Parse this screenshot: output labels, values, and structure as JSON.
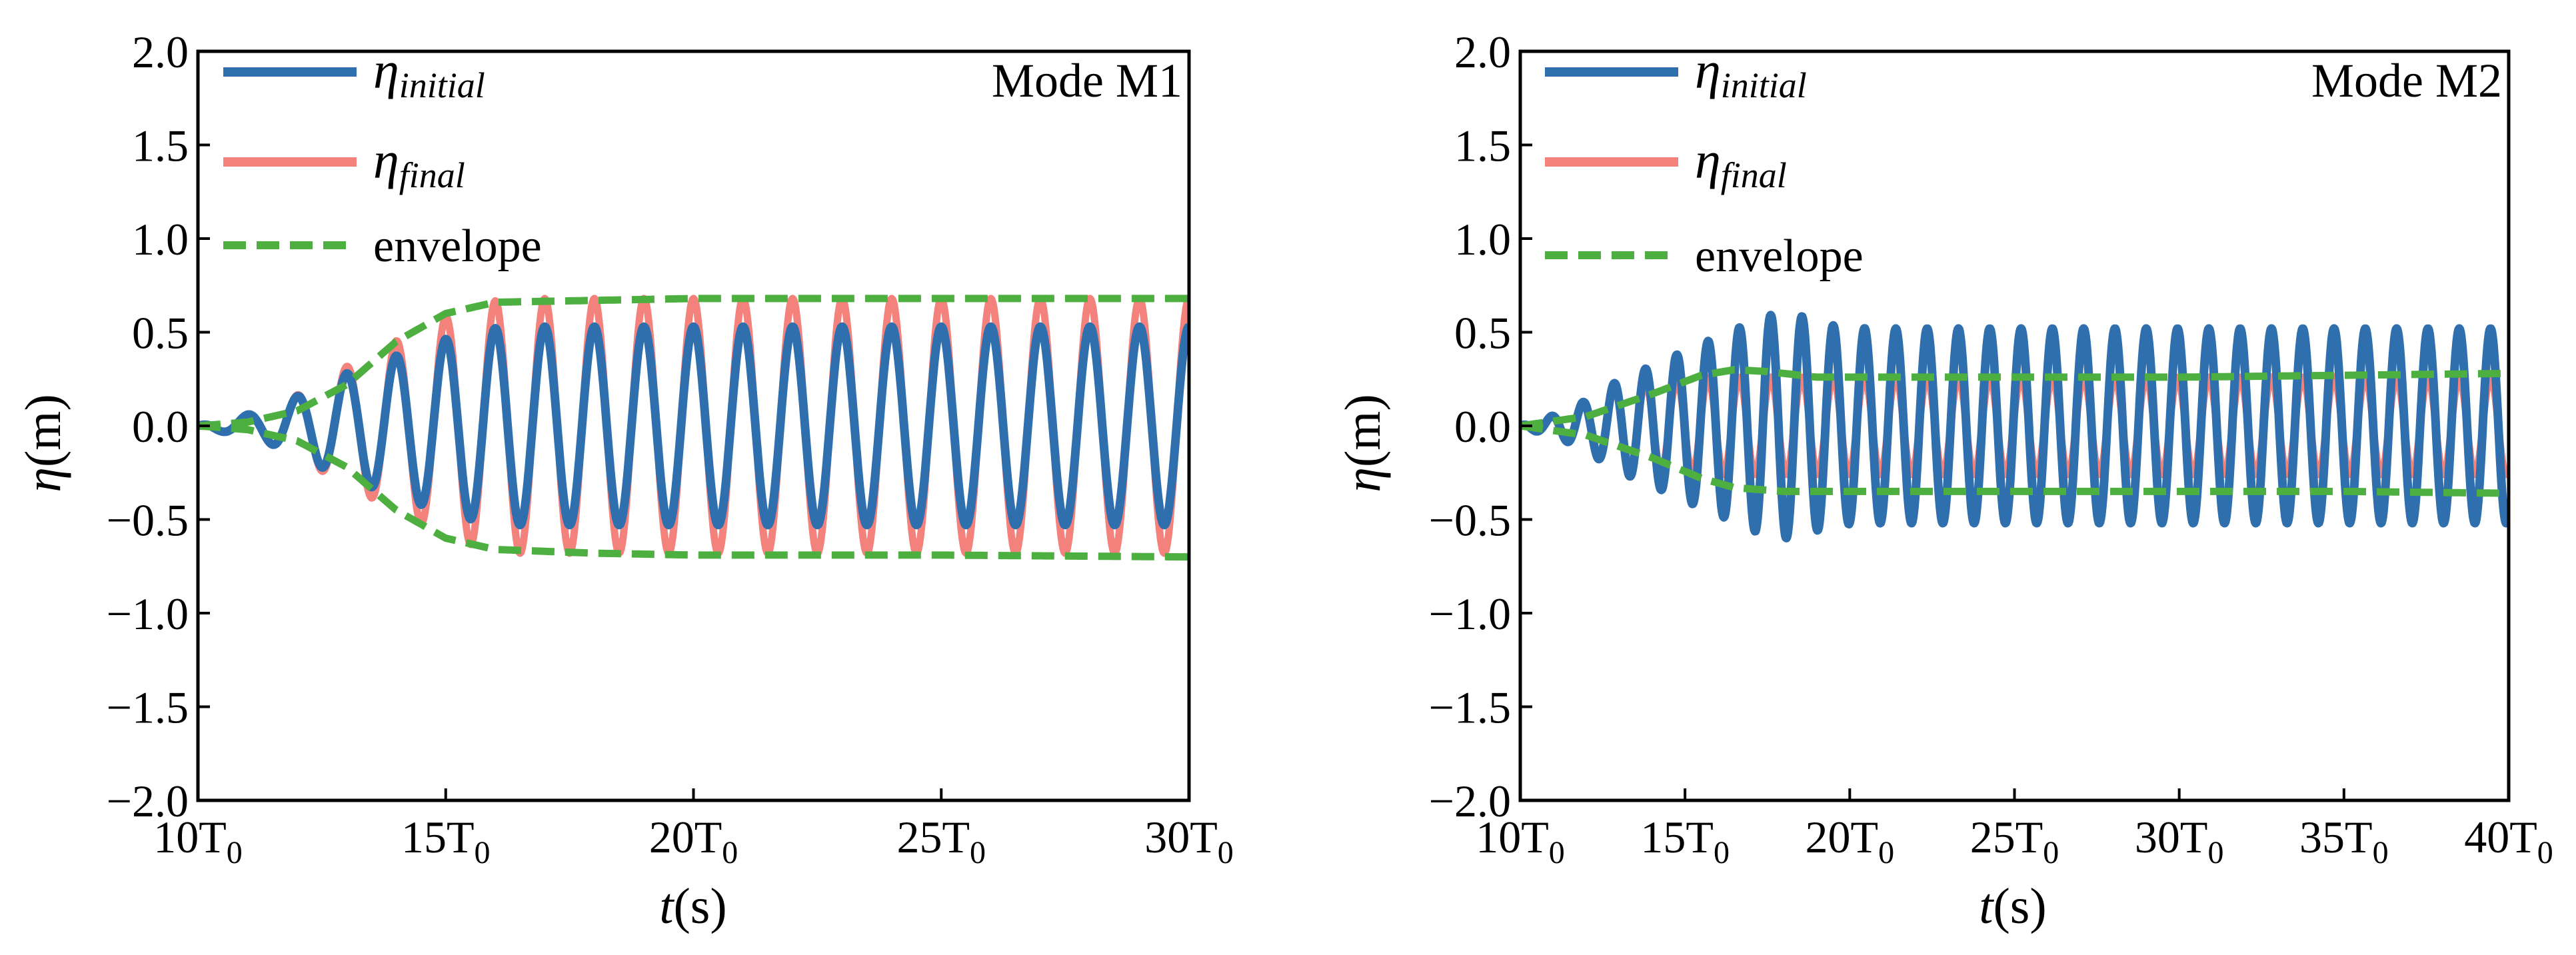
{
  "figure": {
    "ylabel_symbol": "η",
    "ylabel_unit": "(m)",
    "xlabel_symbol": "t",
    "xlabel_unit": "(s)",
    "legend": {
      "eta_symbol": "η",
      "initial_sub": "initial",
      "final_sub": "final",
      "envelope": "envelope"
    }
  },
  "colors": {
    "initial": "#2f6fad",
    "final": "#f4827c",
    "envelope": "#4daf3f"
  },
  "chart_data": [
    {
      "type": "line",
      "annotation": "Mode M1",
      "x_unit_label": "T0",
      "xlim": [
        10,
        30
      ],
      "xticks": [
        10,
        15,
        20,
        25,
        30
      ],
      "xtick_labels": [
        "10T",
        "15T",
        "20T",
        "25T",
        "30T"
      ],
      "xtick_sub": "0",
      "ylim": [
        -2.0,
        2.0
      ],
      "yticks": [
        2.0,
        1.5,
        1.0,
        0.5,
        0.0,
        -0.5,
        -1.0,
        -1.5,
        -2.0
      ],
      "ytick_labels": [
        "2.0",
        "1.5",
        "1.0",
        "0.5",
        "0.0",
        "−0.5",
        "−1.0",
        "−1.5",
        "−2.0"
      ],
      "legend_position": "top-left",
      "series": [
        {
          "key": "initial",
          "period_T0": 1,
          "amplitude_steady": 0.53,
          "onset_T0": 11.3,
          "growth_end_T0": 16.5
        },
        {
          "key": "final",
          "period_T0": 1,
          "amplitude_steady": 0.68,
          "onset_T0": 11.3,
          "growth_end_T0": 16.5
        },
        {
          "key": "envelope_upper",
          "points": [
            [
              10,
              0
            ],
            [
              11,
              0.02
            ],
            [
              12,
              0.08
            ],
            [
              13,
              0.22
            ],
            [
              14,
              0.45
            ],
            [
              15,
              0.6
            ],
            [
              16,
              0.66
            ],
            [
              18,
              0.67
            ],
            [
              20,
              0.68
            ],
            [
              25,
              0.68
            ],
            [
              30,
              0.68
            ]
          ]
        },
        {
          "key": "envelope_lower",
          "points": [
            [
              10,
              0
            ],
            [
              11,
              -0.02
            ],
            [
              12,
              -0.08
            ],
            [
              13,
              -0.22
            ],
            [
              14,
              -0.45
            ],
            [
              15,
              -0.6
            ],
            [
              16,
              -0.66
            ],
            [
              18,
              -0.68
            ],
            [
              20,
              -0.69
            ],
            [
              25,
              -0.69
            ],
            [
              30,
              -0.7
            ]
          ]
        }
      ]
    },
    {
      "type": "line",
      "annotation": "Mode M2",
      "x_unit_label": "T0",
      "xlim": [
        10,
        40
      ],
      "xticks": [
        10,
        15,
        20,
        25,
        30,
        35,
        40
      ],
      "xtick_labels": [
        "10T",
        "15T",
        "20T",
        "25T",
        "30T",
        "35T",
        "40T"
      ],
      "xtick_sub": "0",
      "ylim": [
        -2.0,
        2.0
      ],
      "yticks": [
        2.0,
        1.5,
        1.0,
        0.5,
        0.0,
        -0.5,
        -1.0,
        -1.5,
        -2.0
      ],
      "ytick_labels": [
        "2.0",
        "1.5",
        "1.0",
        "0.5",
        "0.0",
        "−0.5",
        "−1.0",
        "−1.5",
        "−2.0"
      ],
      "legend_position": "top-left",
      "series": [
        {
          "key": "initial",
          "period_T0": 0.95,
          "amplitude_steady": 0.52,
          "overshoot_peak": 0.6,
          "onset_T0": 11.5,
          "growth_end_T0": 17.5
        },
        {
          "key": "final",
          "period_T0": 0.95,
          "amplitude_steady": 0.26,
          "onset_T0": 11.5,
          "growth_end_T0": 16.5
        },
        {
          "key": "envelope_upper",
          "points": [
            [
              10,
              0
            ],
            [
              12,
              0.05
            ],
            [
              14,
              0.17
            ],
            [
              15.5,
              0.27
            ],
            [
              16.5,
              0.3
            ],
            [
              17.5,
              0.29
            ],
            [
              19,
              0.26
            ],
            [
              25,
              0.26
            ],
            [
              30,
              0.26
            ],
            [
              35,
              0.27
            ],
            [
              40,
              0.28
            ]
          ]
        },
        {
          "key": "envelope_lower",
          "points": [
            [
              10,
              0
            ],
            [
              12,
              -0.05
            ],
            [
              14,
              -0.17
            ],
            [
              15.5,
              -0.28
            ],
            [
              16.5,
              -0.33
            ],
            [
              18,
              -0.35
            ],
            [
              20,
              -0.35
            ],
            [
              30,
              -0.35
            ],
            [
              35,
              -0.35
            ],
            [
              40,
              -0.36
            ]
          ]
        }
      ]
    }
  ]
}
